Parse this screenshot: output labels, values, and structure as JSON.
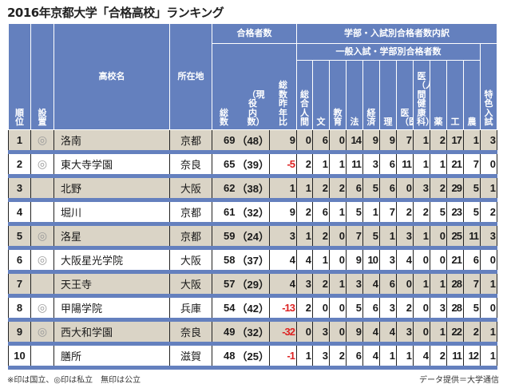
{
  "title": "2016年京都大学「合格高校」ランキング",
  "header": {
    "rank": "順位",
    "type": "設置",
    "school": "高校名",
    "location": "所在地",
    "passers_group": "合格者数",
    "total": "総数",
    "current": "（現役内数）",
    "yoy": "総数昨年比",
    "breakdown_group": "学部・入試別合格者数内訳",
    "general_group": "一般入試・学部別合格者数",
    "faculties": [
      "総合人間",
      "文",
      "教育",
      "法",
      "経済",
      "理",
      "医（医）",
      "医（人間健康科）",
      "薬",
      "工",
      "農"
    ],
    "special": "特色入試"
  },
  "rows": [
    {
      "rank": "1",
      "type": "◎",
      "school": "洛南",
      "location": "京都",
      "total": "69",
      "current": "48",
      "yoy": "9",
      "neg": false,
      "f": [
        "0",
        "6",
        "0",
        "14",
        "9",
        "9",
        "7",
        "1",
        "2",
        "17",
        "1"
      ],
      "special": "3"
    },
    {
      "rank": "2",
      "type": "◎",
      "school": "東大寺学園",
      "location": "奈良",
      "total": "65",
      "current": "39",
      "yoy": "-5",
      "neg": true,
      "f": [
        "2",
        "1",
        "1",
        "11",
        "3",
        "6",
        "11",
        "1",
        "1",
        "21",
        "7"
      ],
      "special": "0"
    },
    {
      "rank": "3",
      "type": "",
      "school": "北野",
      "location": "大阪",
      "total": "62",
      "current": "38",
      "yoy": "1",
      "neg": false,
      "f": [
        "1",
        "2",
        "2",
        "6",
        "5",
        "6",
        "0",
        "3",
        "2",
        "29",
        "5"
      ],
      "special": "1"
    },
    {
      "rank": "4",
      "type": "",
      "school": "堀川",
      "location": "京都",
      "total": "61",
      "current": "32",
      "yoy": "9",
      "neg": false,
      "f": [
        "2",
        "6",
        "1",
        "5",
        "1",
        "7",
        "2",
        "2",
        "5",
        "23",
        "5"
      ],
      "special": "2"
    },
    {
      "rank": "5",
      "type": "◎",
      "school": "洛星",
      "location": "京都",
      "total": "59",
      "current": "24",
      "yoy": "3",
      "neg": false,
      "f": [
        "1",
        "2",
        "0",
        "7",
        "5",
        "1",
        "3",
        "1",
        "0",
        "25",
        "11"
      ],
      "special": "3"
    },
    {
      "rank": "6",
      "type": "◎",
      "school": "大阪星光学院",
      "location": "大阪",
      "total": "58",
      "current": "37",
      "yoy": "4",
      "neg": false,
      "f": [
        "4",
        "1",
        "0",
        "9",
        "10",
        "3",
        "4",
        "0",
        "0",
        "21",
        "6"
      ],
      "special": "0"
    },
    {
      "rank": "7",
      "type": "",
      "school": "天王寺",
      "location": "大阪",
      "total": "57",
      "current": "29",
      "yoy": "4",
      "neg": false,
      "f": [
        "3",
        "2",
        "1",
        "3",
        "4",
        "6",
        "0",
        "1",
        "1",
        "28",
        "7"
      ],
      "special": "1"
    },
    {
      "rank": "8",
      "type": "◎",
      "school": "甲陽学院",
      "location": "兵庫",
      "total": "54",
      "current": "42",
      "yoy": "-13",
      "neg": true,
      "f": [
        "2",
        "0",
        "0",
        "5",
        "6",
        "3",
        "2",
        "0",
        "3",
        "28",
        "5"
      ],
      "special": "0"
    },
    {
      "rank": "9",
      "type": "◎",
      "school": "西大和学園",
      "location": "奈良",
      "total": "49",
      "current": "32",
      "yoy": "-32",
      "neg": true,
      "f": [
        "0",
        "3",
        "0",
        "9",
        "4",
        "4",
        "3",
        "0",
        "1",
        "22",
        "2"
      ],
      "special": "1"
    },
    {
      "rank": "10",
      "type": "",
      "school": "膳所",
      "location": "滋賀",
      "total": "48",
      "current": "25",
      "yoy": "-1",
      "neg": true,
      "f": [
        "1",
        "3",
        "2",
        "6",
        "4",
        "1",
        "1",
        "4",
        "2",
        "11",
        "12"
      ],
      "special": "1"
    }
  ],
  "footnote": "※印は国立、◎印は私立　無印は公立",
  "source": "データ提供＝大学通信",
  "colors": {
    "header_bg": "#6480be",
    "odd_row": "#dad4c6",
    "negative": "#d22222"
  }
}
